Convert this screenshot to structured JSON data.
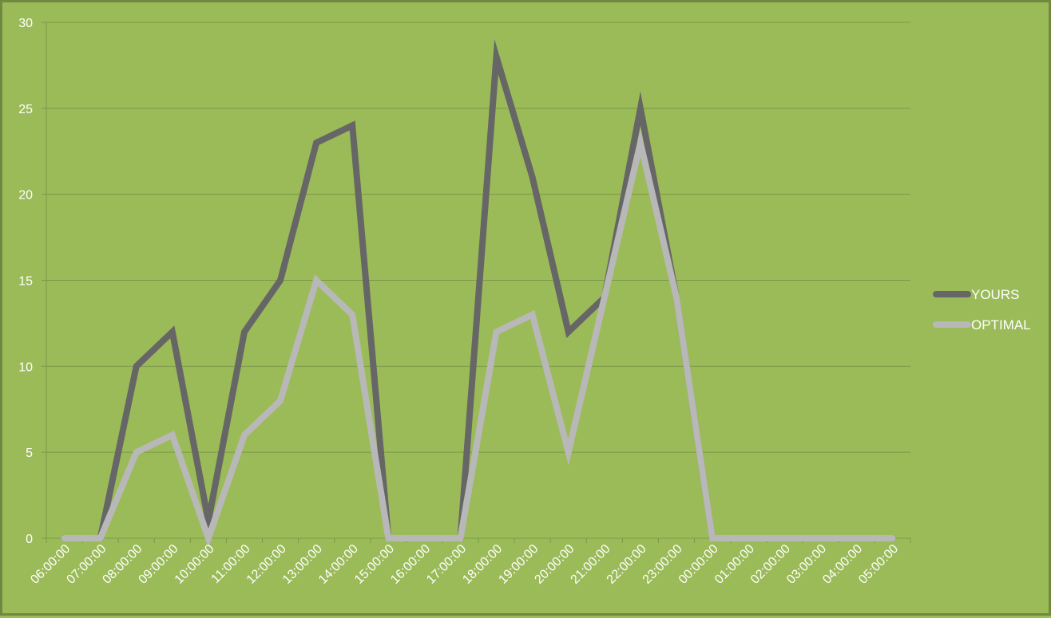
{
  "chart_data": {
    "type": "line",
    "title": "",
    "xlabel": "",
    "ylabel": "",
    "ylim": [
      0,
      30
    ],
    "yticks": [
      "0",
      "5",
      "10",
      "15",
      "20",
      "25",
      "30"
    ],
    "grid": true,
    "legend_position": "right",
    "background_color": "#9bbb59",
    "categories": [
      "06:00:00",
      "07:00:00",
      "08:00:00",
      "09:00:00",
      "10:00:00",
      "11:00:00",
      "12:00:00",
      "13:00:00",
      "14:00:00",
      "15:00:00",
      "16:00:00",
      "17:00:00",
      "18:00:00",
      "19:00:00",
      "20:00:00",
      "21:00:00",
      "22:00:00",
      "23:00:00",
      "00:00:00",
      "01:00:00",
      "02:00:00",
      "03:00:00",
      "04:00:00",
      "05:00:00"
    ],
    "series": [
      {
        "name": "YOURS",
        "color": "#666666",
        "values": [
          0,
          0,
          10,
          12,
          1,
          12,
          15,
          23,
          24,
          0,
          0,
          0,
          28,
          21,
          12,
          14,
          25,
          14,
          0,
          0,
          0,
          0,
          0,
          0
        ]
      },
      {
        "name": "OPTIMAL",
        "color": "#b8b8b8",
        "values": [
          0,
          0,
          5,
          6,
          0,
          6,
          8,
          15,
          13,
          0,
          0,
          0,
          12,
          13,
          5,
          14,
          23,
          14,
          0,
          0,
          0,
          0,
          0,
          0
        ]
      }
    ]
  }
}
